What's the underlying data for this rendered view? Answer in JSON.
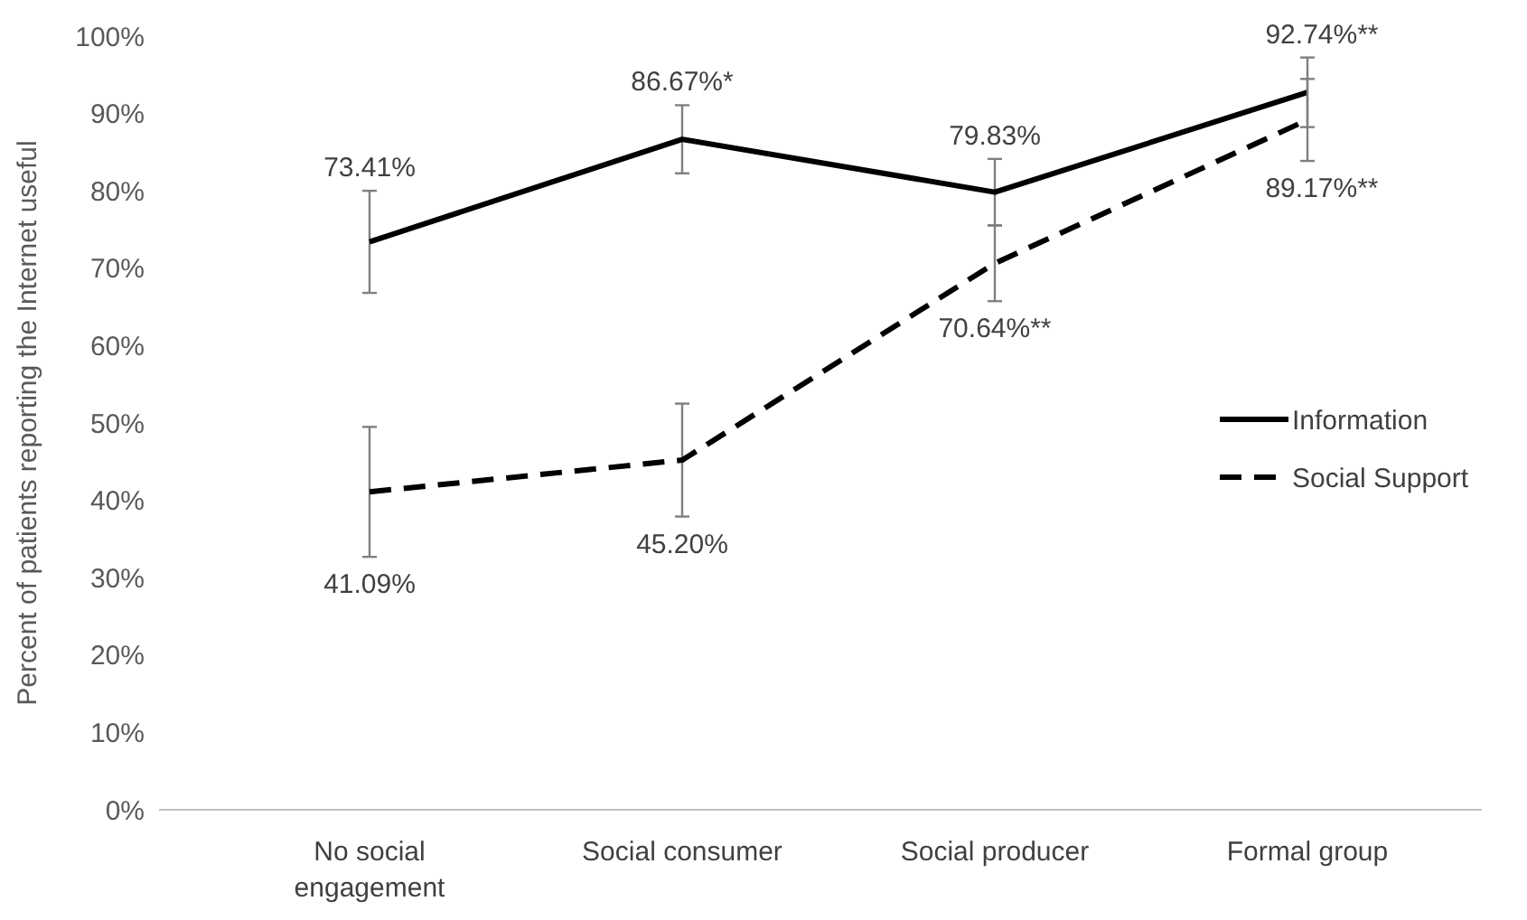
{
  "chart_data": {
    "type": "line",
    "ylabel": "Percent of patients reporting the Internet useful",
    "categories": [
      "No social engagement",
      "Social consumer",
      "Social producer",
      "Formal group"
    ],
    "series": [
      {
        "name": "Information",
        "color": "#000000",
        "line_style": "solid",
        "values": [
          73.41,
          86.67,
          79.83,
          92.74
        ],
        "errors": [
          6.6,
          4.4,
          4.3,
          4.5
        ],
        "value_labels": [
          "73.41%",
          "86.67%*",
          "79.83%",
          "92.74%**"
        ]
      },
      {
        "name": "Social Support",
        "color": "#000000",
        "line_style": "dashed",
        "values": [
          41.09,
          45.2,
          70.64,
          89.17
        ],
        "errors": [
          8.4,
          7.3,
          4.9,
          5.3
        ],
        "value_labels": [
          "41.09%",
          "45.20%",
          "70.64%**",
          "89.17%**"
        ]
      }
    ],
    "ylim": [
      0,
      100
    ],
    "yticks": [
      {
        "value": 0,
        "label": "0%"
      },
      {
        "value": 10,
        "label": "10%"
      },
      {
        "value": 20,
        "label": "20%"
      },
      {
        "value": 30,
        "label": "30%"
      },
      {
        "value": 40,
        "label": "40%"
      },
      {
        "value": 50,
        "label": "50%"
      },
      {
        "value": 60,
        "label": "60%"
      },
      {
        "value": 70,
        "label": "70%"
      },
      {
        "value": 80,
        "label": "80%"
      },
      {
        "value": 90,
        "label": "90%"
      },
      {
        "value": 100,
        "label": "100%"
      }
    ],
    "legend": "right",
    "marker": "none"
  }
}
